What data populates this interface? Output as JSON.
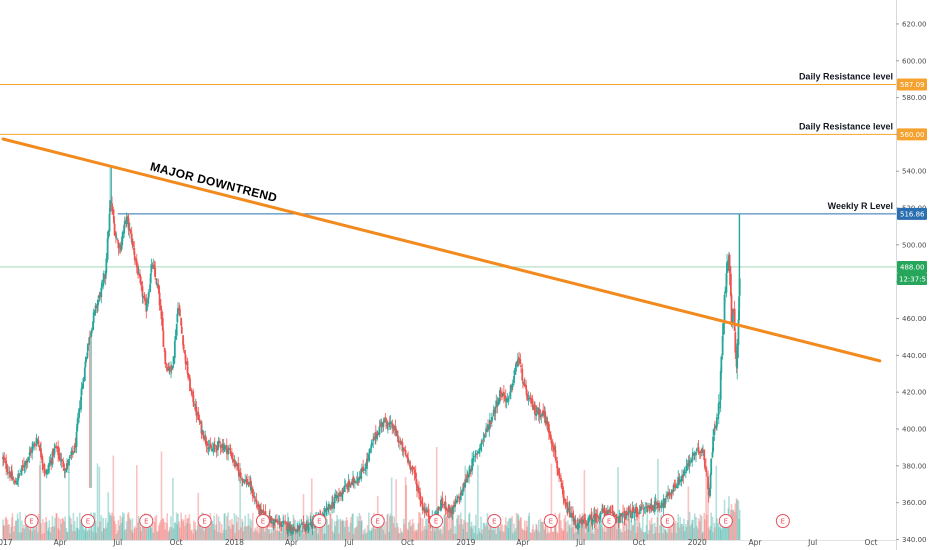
{
  "chart_data": {
    "type": "candlestick",
    "x_axis": {
      "labels": [
        "2017",
        "Apr",
        "Jul",
        "Oct",
        "2018",
        "Apr",
        "Jul",
        "Oct",
        "2019",
        "Apr",
        "Jul",
        "Oct",
        "2020",
        "Apr",
        "Jul",
        "Oct"
      ],
      "start": "2017-01-01",
      "end": "2020-10-31"
    },
    "y_axis": {
      "ticks": [
        340,
        360,
        380,
        400,
        420,
        440,
        460,
        480,
        500,
        520,
        540,
        560,
        580,
        600,
        620
      ],
      "tick_labels": [
        "340.00",
        "360.00",
        "380.00",
        "400.00",
        "420.00",
        "440.00",
        "460.00",
        "480.00",
        "500.00",
        "520.00",
        "540.00",
        "560.00",
        "580.00",
        "600.00",
        "620.00"
      ],
      "range": [
        337,
        633
      ]
    },
    "price_path": [
      [
        "2017-01-01",
        384
      ],
      [
        "2017-01-20",
        370
      ],
      [
        "2017-02-10",
        385
      ],
      [
        "2017-02-25",
        395
      ],
      [
        "2017-03-10",
        375
      ],
      [
        "2017-03-25",
        390
      ],
      [
        "2017-04-10",
        378
      ],
      [
        "2017-04-25",
        390
      ],
      [
        "2017-05-05",
        420
      ],
      [
        "2017-05-15",
        445
      ],
      [
        "2017-05-25",
        462
      ],
      [
        "2017-06-05",
        475
      ],
      [
        "2017-06-12",
        485
      ],
      [
        "2017-06-20",
        525
      ],
      [
        "2017-06-28",
        505
      ],
      [
        "2017-07-05",
        498
      ],
      [
        "2017-07-15",
        515
      ],
      [
        "2017-07-25",
        500
      ],
      [
        "2017-08-05",
        480
      ],
      [
        "2017-08-15",
        465
      ],
      [
        "2017-08-25",
        490
      ],
      [
        "2017-09-05",
        472
      ],
      [
        "2017-09-15",
        435
      ],
      [
        "2017-09-25",
        432
      ],
      [
        "2017-10-05",
        468
      ],
      [
        "2017-10-15",
        440
      ],
      [
        "2017-10-25",
        420
      ],
      [
        "2017-11-10",
        400
      ],
      [
        "2017-11-25",
        388
      ],
      [
        "2017-12-10",
        392
      ],
      [
        "2017-12-25",
        388
      ],
      [
        "2018-01-10",
        375
      ],
      [
        "2018-01-25",
        370
      ],
      [
        "2018-02-10",
        355
      ],
      [
        "2018-03-01",
        350
      ],
      [
        "2018-03-20",
        348
      ],
      [
        "2018-04-10",
        345
      ],
      [
        "2018-05-01",
        348
      ],
      [
        "2018-05-20",
        352
      ],
      [
        "2018-06-10",
        362
      ],
      [
        "2018-06-25",
        368
      ],
      [
        "2018-07-10",
        372
      ],
      [
        "2018-07-25",
        378
      ],
      [
        "2018-08-10",
        395
      ],
      [
        "2018-08-25",
        405
      ],
      [
        "2018-09-10",
        400
      ],
      [
        "2018-09-25",
        388
      ],
      [
        "2018-10-10",
        378
      ],
      [
        "2018-10-25",
        358
      ],
      [
        "2018-11-10",
        350
      ],
      [
        "2018-11-25",
        360
      ],
      [
        "2018-12-10",
        355
      ],
      [
        "2018-12-25",
        365
      ],
      [
        "2019-01-10",
        380
      ],
      [
        "2019-01-25",
        392
      ],
      [
        "2019-02-10",
        405
      ],
      [
        "2019-02-25",
        420
      ],
      [
        "2019-03-10",
        415
      ],
      [
        "2019-03-25",
        440
      ],
      [
        "2019-04-05",
        420
      ],
      [
        "2019-04-20",
        410
      ],
      [
        "2019-05-05",
        408
      ],
      [
        "2019-05-20",
        390
      ],
      [
        "2019-06-05",
        360
      ],
      [
        "2019-06-25",
        348
      ],
      [
        "2019-07-15",
        350
      ],
      [
        "2019-08-05",
        355
      ],
      [
        "2019-09-01",
        352
      ],
      [
        "2019-09-25",
        355
      ],
      [
        "2019-10-20",
        358
      ],
      [
        "2019-11-10",
        360
      ],
      [
        "2019-11-25",
        368
      ],
      [
        "2019-12-10",
        375
      ],
      [
        "2019-12-25",
        385
      ],
      [
        "2020-01-10",
        390
      ],
      [
        "2020-01-20",
        365
      ],
      [
        "2020-01-28",
        400
      ],
      [
        "2020-02-05",
        410
      ],
      [
        "2020-02-12",
        462
      ],
      [
        "2020-02-18",
        497
      ],
      [
        "2020-02-22",
        488
      ],
      [
        "2020-02-25",
        455
      ],
      [
        "2020-02-28",
        468
      ],
      [
        "2020-03-03",
        432
      ],
      [
        "2020-03-07",
        470
      ],
      [
        "2020-03-10",
        488
      ]
    ],
    "downtrend_line": {
      "label": "MAJOR DOWNTREND",
      "points": [
        [
          "2017-01-01",
          557.5
        ],
        [
          "2020-10-15",
          437
        ]
      ]
    },
    "horizontal_levels": [
      {
        "label": "Daily Resistance level",
        "value": 587.09,
        "badge": "587.09",
        "color": "#f6a22f"
      },
      {
        "label": "Daily Resistance level",
        "value": 560.0,
        "badge": "560.00",
        "color": "#f6a22f"
      },
      {
        "label": "Weekly R Level",
        "value": 516.86,
        "badge": "516.86",
        "color": "#2a6fb0"
      },
      {
        "label": "",
        "value": 488.0,
        "badge": "488.00",
        "color": "#26a65b",
        "countdown": "12:37:51"
      }
    ],
    "earnings_markers": [
      "2017-02-15",
      "2017-05-15",
      "2017-08-15",
      "2017-11-15",
      "2018-02-15",
      "2018-05-15",
      "2018-08-15",
      "2018-11-15",
      "2019-02-15",
      "2019-05-15",
      "2019-08-15",
      "2019-11-15",
      "2020-02-15",
      "2020-05-15"
    ],
    "earnings_label": "E",
    "colors": {
      "up": "#26a69a",
      "down": "#ef5350",
      "trend_line": "#f28a1e",
      "axis_bg": "#ffffff",
      "grid": "#f0f3f8"
    }
  }
}
